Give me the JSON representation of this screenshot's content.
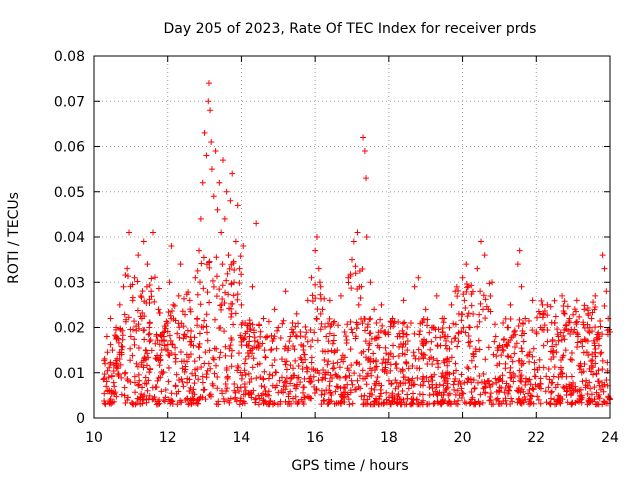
{
  "chart_data": {
    "type": "scatter",
    "title": "Day 205 of 2023, Rate Of TEC Index for receiver prds",
    "xlabel": "GPS time / hours",
    "ylabel": "ROTI / TECUs",
    "xlim": [
      10,
      24
    ],
    "ylim": [
      0,
      0.08
    ],
    "x_ticks": [
      "10",
      "12",
      "14",
      "16",
      "18",
      "20",
      "22",
      "24"
    ],
    "y_ticks": [
      "0",
      "0.01",
      "0.02",
      "0.03",
      "0.04",
      "0.05",
      "0.06",
      "0.07",
      "0.08"
    ],
    "grid": true,
    "marker": "+",
    "color": "#ff0000",
    "series": [
      {
        "values": [
          [
            10.3,
            0.012
          ],
          [
            10.35,
            0.018
          ],
          [
            10.4,
            0.009
          ],
          [
            10.45,
            0.022
          ],
          [
            10.5,
            0.015
          ],
          [
            10.55,
            0.007
          ],
          [
            10.6,
            0.02
          ],
          [
            10.65,
            0.011
          ],
          [
            10.7,
            0.025
          ],
          [
            10.75,
            0.014
          ],
          [
            10.8,
            0.029
          ],
          [
            10.85,
            0.01
          ],
          [
            10.9,
            0.033
          ],
          [
            10.95,
            0.041
          ],
          [
            11.0,
            0.018
          ],
          [
            11.05,
            0.026
          ],
          [
            11.1,
            0.031
          ],
          [
            11.15,
            0.012
          ],
          [
            11.2,
            0.036
          ],
          [
            11.3,
            0.022
          ],
          [
            11.35,
            0.039
          ],
          [
            11.4,
            0.015
          ],
          [
            11.45,
            0.034
          ],
          [
            11.5,
            0.02
          ],
          [
            11.55,
            0.028
          ],
          [
            11.6,
            0.041
          ],
          [
            11.7,
            0.013
          ],
          [
            11.75,
            0.024
          ],
          [
            11.8,
            0.009
          ],
          [
            11.9,
            0.017
          ],
          [
            12.0,
            0.021
          ],
          [
            12.05,
            0.03
          ],
          [
            12.1,
            0.038
          ],
          [
            12.15,
            0.025
          ],
          [
            12.2,
            0.014
          ],
          [
            12.3,
            0.027
          ],
          [
            12.35,
            0.034
          ],
          [
            12.4,
            0.011
          ],
          [
            12.5,
            0.018
          ],
          [
            12.6,
            0.026
          ],
          [
            12.7,
            0.016
          ],
          [
            12.75,
            0.031
          ],
          [
            12.8,
            0.022
          ],
          [
            12.85,
            0.037
          ],
          [
            12.9,
            0.044
          ],
          [
            12.95,
            0.052
          ],
          [
            13.0,
            0.063
          ],
          [
            13.05,
            0.058
          ],
          [
            13.1,
            0.07
          ],
          [
            13.12,
            0.074
          ],
          [
            13.15,
            0.068
          ],
          [
            13.18,
            0.061
          ],
          [
            13.2,
            0.055
          ],
          [
            13.25,
            0.049
          ],
          [
            13.3,
            0.059
          ],
          [
            13.35,
            0.046
          ],
          [
            13.4,
            0.052
          ],
          [
            13.45,
            0.041
          ],
          [
            13.5,
            0.057
          ],
          [
            13.55,
            0.044
          ],
          [
            13.6,
            0.05
          ],
          [
            13.65,
            0.036
          ],
          [
            13.7,
            0.048
          ],
          [
            13.75,
            0.054
          ],
          [
            13.8,
            0.03
          ],
          [
            13.85,
            0.039
          ],
          [
            13.9,
            0.047
          ],
          [
            13.95,
            0.033
          ],
          [
            14.0,
            0.025
          ],
          [
            14.05,
            0.038
          ],
          [
            14.1,
            0.021
          ],
          [
            14.2,
            0.016
          ],
          [
            14.3,
            0.029
          ],
          [
            14.4,
            0.043
          ],
          [
            14.5,
            0.012
          ],
          [
            14.6,
            0.022
          ],
          [
            14.7,
            0.018
          ],
          [
            14.8,
            0.015
          ],
          [
            14.9,
            0.024
          ],
          [
            15.0,
            0.02
          ],
          [
            15.1,
            0.013
          ],
          [
            15.2,
            0.028
          ],
          [
            15.3,
            0.017
          ],
          [
            15.4,
            0.011
          ],
          [
            15.5,
            0.023
          ],
          [
            15.6,
            0.019
          ],
          [
            15.7,
            0.014
          ],
          [
            15.8,
            0.026
          ],
          [
            15.9,
            0.031
          ],
          [
            16.0,
            0.037
          ],
          [
            16.05,
            0.04
          ],
          [
            16.1,
            0.033
          ],
          [
            16.15,
            0.029
          ],
          [
            16.2,
            0.024
          ],
          [
            16.3,
            0.018
          ],
          [
            16.4,
            0.026
          ],
          [
            16.5,
            0.021
          ],
          [
            16.6,
            0.015
          ],
          [
            16.7,
            0.027
          ],
          [
            16.8,
            0.019
          ],
          [
            16.9,
            0.031
          ],
          [
            17.0,
            0.035
          ],
          [
            17.05,
            0.039
          ],
          [
            17.1,
            0.032
          ],
          [
            17.15,
            0.041
          ],
          [
            17.2,
            0.029
          ],
          [
            17.3,
            0.062
          ],
          [
            17.35,
            0.059
          ],
          [
            17.38,
            0.053
          ],
          [
            17.4,
            0.04
          ],
          [
            17.5,
            0.03
          ],
          [
            17.6,
            0.024
          ],
          [
            17.7,
            0.016
          ],
          [
            17.8,
            0.025
          ],
          [
            17.9,
            0.019
          ],
          [
            18.0,
            0.014
          ],
          [
            18.1,
            0.022
          ],
          [
            18.2,
            0.012
          ],
          [
            18.3,
            0.018
          ],
          [
            18.4,
            0.026
          ],
          [
            18.5,
            0.015
          ],
          [
            18.6,
            0.021
          ],
          [
            18.7,
            0.029
          ],
          [
            18.8,
            0.031
          ],
          [
            18.9,
            0.017
          ],
          [
            19.0,
            0.024
          ],
          [
            19.1,
            0.013
          ],
          [
            19.2,
            0.02
          ],
          [
            19.3,
            0.027
          ],
          [
            19.4,
            0.016
          ],
          [
            19.5,
            0.022
          ],
          [
            19.6,
            0.018
          ],
          [
            19.7,
            0.025
          ],
          [
            19.8,
            0.028
          ],
          [
            19.9,
            0.023
          ],
          [
            20.0,
            0.031
          ],
          [
            20.05,
            0.026
          ],
          [
            20.1,
            0.034
          ],
          [
            20.15,
            0.029
          ],
          [
            20.2,
            0.02
          ],
          [
            20.3,
            0.014
          ],
          [
            20.4,
            0.033
          ],
          [
            20.5,
            0.039
          ],
          [
            20.6,
            0.036
          ],
          [
            20.7,
            0.024
          ],
          [
            20.8,
            0.03
          ],
          [
            20.9,
            0.018
          ],
          [
            21.0,
            0.012
          ],
          [
            21.1,
            0.021
          ],
          [
            21.2,
            0.016
          ],
          [
            21.3,
            0.025
          ],
          [
            21.4,
            0.019
          ],
          [
            21.5,
            0.034
          ],
          [
            21.55,
            0.037
          ],
          [
            21.6,
            0.029
          ],
          [
            21.7,
            0.022
          ],
          [
            21.8,
            0.014
          ],
          [
            21.9,
            0.026
          ],
          [
            22.0,
            0.019
          ],
          [
            22.1,
            0.023
          ],
          [
            22.2,
            0.016
          ],
          [
            22.3,
            0.025
          ],
          [
            22.4,
            0.013
          ],
          [
            22.5,
            0.021
          ],
          [
            22.6,
            0.018
          ],
          [
            22.7,
            0.027
          ],
          [
            22.8,
            0.015
          ],
          [
            22.9,
            0.022
          ],
          [
            23.0,
            0.019
          ],
          [
            23.1,
            0.026
          ],
          [
            23.2,
            0.012
          ],
          [
            23.3,
            0.024
          ],
          [
            23.4,
            0.017
          ],
          [
            23.5,
            0.022
          ],
          [
            23.6,
            0.027
          ],
          [
            23.7,
            0.016
          ],
          [
            23.8,
            0.036
          ],
          [
            23.85,
            0.033
          ],
          [
            23.9,
            0.028
          ],
          [
            23.95,
            0.022
          ],
          [
            24.0,
            0.019
          ]
        ]
      }
    ]
  }
}
